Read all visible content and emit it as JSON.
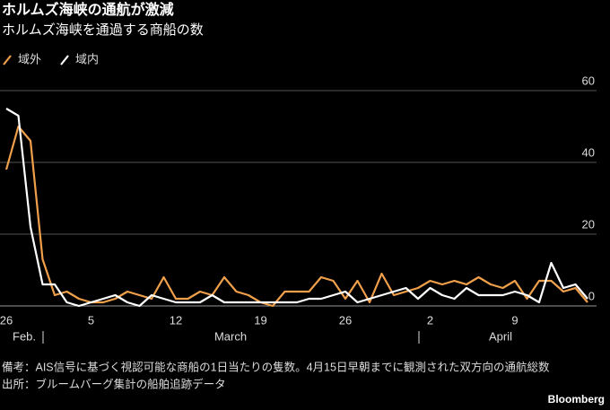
{
  "chart_data": {
    "type": "line",
    "title": "ホルムズ海峡の通航が激減",
    "subtitle": "ホルムズ海峡を通過する商船の数",
    "categories": [
      "26",
      null,
      null,
      null,
      null,
      null,
      null,
      "5",
      null,
      null,
      null,
      null,
      null,
      null,
      "12",
      null,
      null,
      null,
      null,
      null,
      null,
      "19",
      null,
      null,
      null,
      null,
      null,
      null,
      "26",
      null,
      null,
      null,
      null,
      null,
      null,
      "2",
      null,
      null,
      null,
      null,
      null,
      null,
      "9",
      null,
      null,
      null,
      null,
      null,
      null
    ],
    "months": [
      "Feb.",
      "March",
      "April"
    ],
    "series": [
      {
        "name": "域外",
        "color": "#f0a04b",
        "values": [
          38,
          50,
          46,
          13,
          3,
          4,
          2,
          1,
          1,
          2,
          4,
          3,
          2,
          8,
          2,
          2,
          4,
          3,
          8,
          4,
          3,
          1,
          0,
          4,
          4,
          4,
          8,
          7,
          2,
          7,
          1,
          9,
          3,
          4,
          5,
          7,
          6,
          7,
          6,
          8,
          6,
          5,
          7,
          2,
          7,
          7,
          4,
          5,
          1
        ]
      },
      {
        "name": "域内",
        "color": "#ffffff",
        "values": [
          55,
          53,
          22,
          6,
          6,
          1,
          0,
          1,
          2,
          3,
          1,
          0,
          3,
          2,
          1,
          1,
          1,
          3,
          1,
          1,
          1,
          1,
          1,
          1,
          1,
          2,
          2,
          3,
          4,
          1,
          2,
          3,
          4,
          5,
          2,
          5,
          3,
          2,
          5,
          3,
          3,
          3,
          4,
          3,
          1,
          12,
          5,
          6,
          2
        ]
      }
    ],
    "ylim": [
      0,
      60
    ],
    "yticks": [
      0,
      20,
      40,
      60
    ],
    "grid": true,
    "legend": "top-left",
    "note": "備考：AIS信号に基づく視認可能な商船の1日当たりの隻数。4月15日早朝までに観測された双方向の通航総数",
    "source": "出所：ブルームバーグ集計の船舶追跡データ",
    "brand": "Bloomberg"
  }
}
